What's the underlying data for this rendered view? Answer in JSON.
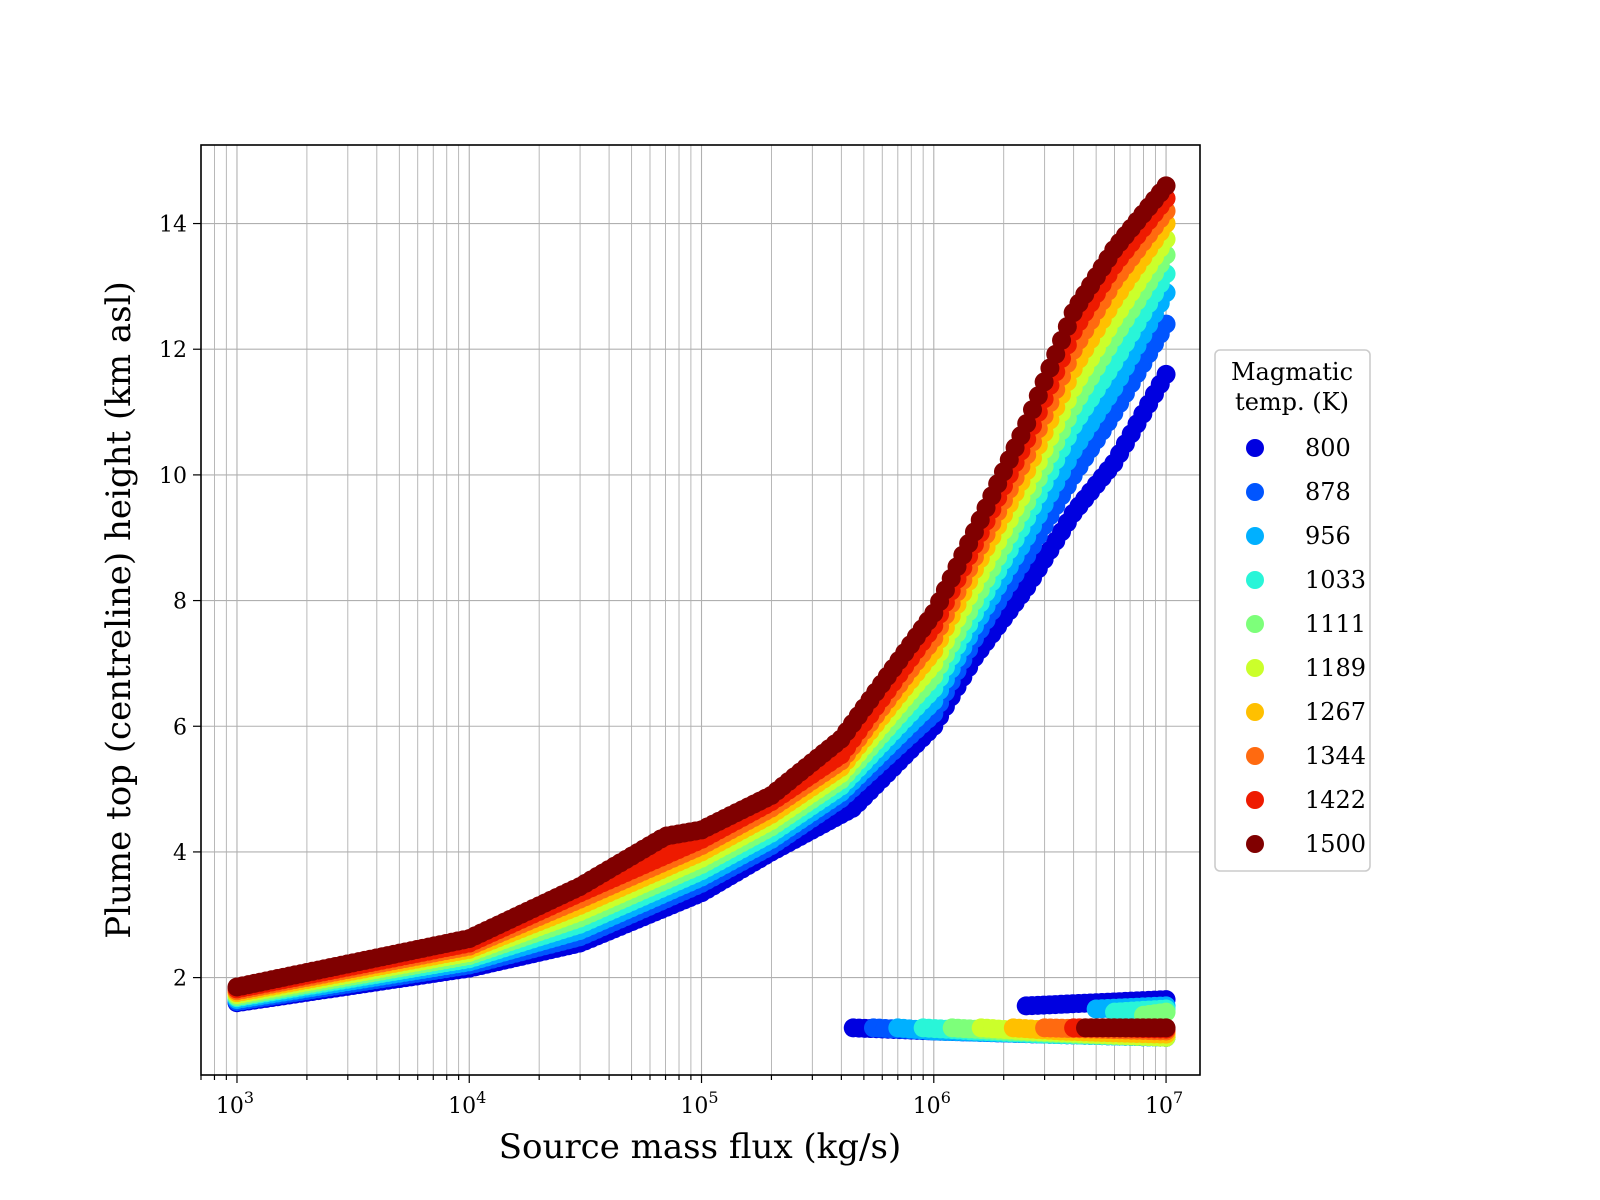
{
  "chart_data": {
    "type": "scatter",
    "title": "",
    "xlabel": "Source mass flux (kg/s)",
    "ylabel": "Plume top (centreline) height (km asl)",
    "x_scale": "log",
    "xlim": [
      700,
      14000000
    ],
    "ylim": [
      0.45,
      15.25
    ],
    "grid": true,
    "grid_minor_x": true,
    "x_tick_labels": [
      {
        "base": "10",
        "exp": "3",
        "value": 1000
      },
      {
        "base": "10",
        "exp": "4",
        "value": 10000
      },
      {
        "base": "10",
        "exp": "5",
        "value": 100000
      },
      {
        "base": "10",
        "exp": "6",
        "value": 1000000
      },
      {
        "base": "10",
        "exp": "7",
        "value": 10000000
      }
    ],
    "y_ticks": [
      2,
      4,
      6,
      8,
      10,
      12,
      14
    ],
    "y_tick_labels": [
      "2",
      "4",
      "6",
      "8",
      "10",
      "12",
      "14"
    ],
    "legend": {
      "title_lines": [
        "Magmatic",
        "temp. (K)"
      ],
      "placement": "outside right",
      "entries": [
        {
          "label": "800",
          "color": "#0000e0"
        },
        {
          "label": "878",
          "color": "#0055ff"
        },
        {
          "label": "956",
          "color": "#00b0ff"
        },
        {
          "label": "1033",
          "color": "#29f5d8"
        },
        {
          "label": "1111",
          "color": "#7dff7a"
        },
        {
          "label": "1189",
          "color": "#cbff2b"
        },
        {
          "label": "1267",
          "color": "#ffc000"
        },
        {
          "label": "1344",
          "color": "#ff6a10"
        },
        {
          "label": "1422",
          "color": "#ee1a00"
        },
        {
          "label": "1500",
          "color": "#800000"
        }
      ]
    },
    "series": [
      {
        "name": "800",
        "color": "#0000e0",
        "upper_x": [
          1000,
          10000,
          30000,
          100000,
          200000,
          450000,
          1000000,
          1500000,
          2500000,
          4000000,
          6000000,
          10000000
        ],
        "upper_y": [
          1.6,
          2.15,
          2.55,
          3.35,
          4.0,
          4.7,
          6.0,
          7.1,
          8.2,
          9.4,
          10.2,
          11.6
        ],
        "lower_x": [
          450000,
          1000000,
          3000000,
          10000000
        ],
        "lower_y": [
          1.2,
          1.15,
          1.1,
          1.05
        ],
        "extra_x": [
          2500000,
          5000000,
          10000000
        ],
        "extra_y": [
          1.55,
          1.6,
          1.65
        ]
      },
      {
        "name": "878",
        "color": "#0055ff",
        "upper_x": [
          1000,
          10000,
          30000,
          100000,
          200000,
          400000,
          1000000,
          1500000,
          2500000,
          4000000,
          6000000,
          10000000
        ],
        "upper_y": [
          1.62,
          2.2,
          2.65,
          3.5,
          4.1,
          4.85,
          6.2,
          7.4,
          8.7,
          10.0,
          11.0,
          12.4
        ],
        "lower_x": [
          550000,
          1000000,
          3000000,
          10000000
        ],
        "lower_y": [
          1.2,
          1.15,
          1.1,
          1.05
        ]
      },
      {
        "name": "956",
        "color": "#00b0ff",
        "upper_x": [
          1000,
          10000,
          30000,
          100000,
          200000,
          400000,
          1000000,
          1500000,
          2500000,
          4000000,
          6000000,
          10000000
        ],
        "upper_y": [
          1.65,
          2.25,
          2.75,
          3.6,
          4.2,
          4.95,
          6.4,
          7.6,
          9.0,
          10.4,
          11.4,
          12.9
        ],
        "lower_x": [
          700000,
          1000000,
          3000000,
          10000000
        ],
        "lower_y": [
          1.2,
          1.15,
          1.1,
          1.05
        ],
        "extra_x": [
          5000000,
          10000000
        ],
        "extra_y": [
          1.5,
          1.55
        ]
      },
      {
        "name": "1033",
        "color": "#29f5d8",
        "upper_x": [
          1000,
          10000,
          30000,
          100000,
          200000,
          400000,
          1000000,
          1500000,
          2500000,
          4000000,
          6000000,
          10000000
        ],
        "upper_y": [
          1.68,
          2.3,
          2.85,
          3.7,
          4.3,
          5.05,
          6.6,
          7.8,
          9.3,
          10.8,
          11.8,
          13.2
        ],
        "lower_x": [
          900000,
          1500000,
          3000000,
          10000000
        ],
        "lower_y": [
          1.2,
          1.15,
          1.1,
          1.05
        ],
        "extra_x": [
          6000000,
          10000000
        ],
        "extra_y": [
          1.45,
          1.5
        ]
      },
      {
        "name": "1111",
        "color": "#7dff7a",
        "upper_x": [
          1000,
          10000,
          30000,
          100000,
          200000,
          400000,
          1000000,
          1500000,
          2500000,
          4000000,
          6000000,
          10000000
        ],
        "upper_y": [
          1.7,
          2.35,
          2.95,
          3.8,
          4.4,
          5.15,
          6.8,
          8.0,
          9.55,
          11.1,
          12.2,
          13.5
        ],
        "lower_x": [
          1200000,
          2000000,
          4000000,
          10000000
        ],
        "lower_y": [
          1.2,
          1.15,
          1.1,
          1.05
        ],
        "extra_x": [
          8000000,
          10000000
        ],
        "extra_y": [
          1.4,
          1.45
        ]
      },
      {
        "name": "1189",
        "color": "#cbff2b",
        "upper_x": [
          1000,
          10000,
          30000,
          100000,
          200000,
          400000,
          1000000,
          1500000,
          2500000,
          4000000,
          6000000,
          10000000
        ],
        "upper_y": [
          1.73,
          2.4,
          3.05,
          3.9,
          4.5,
          5.25,
          7.0,
          8.25,
          9.8,
          11.4,
          12.5,
          13.75
        ],
        "lower_x": [
          1600000,
          2500000,
          5000000,
          10000000
        ],
        "lower_y": [
          1.2,
          1.15,
          1.1,
          1.05
        ],
        "extra_x": [
          10000000
        ],
        "extra_y": [
          1.4
        ]
      },
      {
        "name": "1267",
        "color": "#ffc000",
        "upper_x": [
          1000,
          10000,
          30000,
          100000,
          200000,
          400000,
          1000000,
          1500000,
          2500000,
          4000000,
          6000000,
          10000000
        ],
        "upper_y": [
          1.76,
          2.45,
          3.15,
          4.0,
          4.6,
          5.35,
          7.2,
          8.5,
          10.05,
          11.7,
          12.8,
          14.0
        ],
        "lower_x": [
          2200000,
          3500000,
          6000000,
          10000000
        ],
        "lower_y": [
          1.2,
          1.15,
          1.12,
          1.1
        ]
      },
      {
        "name": "1344",
        "color": "#ff6a10",
        "upper_x": [
          1000,
          10000,
          30000,
          100000,
          200000,
          400000,
          1000000,
          1500000,
          2500000,
          4000000,
          6000000,
          10000000
        ],
        "upper_y": [
          1.79,
          2.5,
          3.25,
          4.1,
          4.7,
          5.45,
          7.4,
          8.7,
          10.3,
          12.0,
          13.1,
          14.2
        ],
        "lower_x": [
          3000000,
          5000000,
          10000000
        ],
        "lower_y": [
          1.2,
          1.18,
          1.15
        ]
      },
      {
        "name": "1422",
        "color": "#ee1a00",
        "upper_x": [
          1000,
          10000,
          30000,
          100000,
          200000,
          400000,
          1000000,
          1500000,
          2500000,
          4000000,
          6000000,
          10000000
        ],
        "upper_y": [
          1.82,
          2.55,
          3.35,
          4.2,
          4.8,
          5.55,
          7.6,
          8.9,
          10.55,
          12.3,
          13.35,
          14.4
        ],
        "lower_x": [
          4000000,
          6000000,
          10000000
        ],
        "lower_y": [
          1.2,
          1.2,
          1.18
        ]
      },
      {
        "name": "1500",
        "color": "#800000",
        "upper_x": [
          1000,
          10000,
          30000,
          70000,
          100000,
          200000,
          400000,
          1000000,
          1500000,
          2500000,
          4000000,
          6000000,
          10000000
        ],
        "upper_y": [
          1.85,
          2.62,
          3.45,
          4.25,
          4.35,
          4.9,
          5.8,
          7.8,
          9.1,
          10.8,
          12.6,
          13.6,
          14.6
        ],
        "lower_x": [
          4500000,
          6000000,
          10000000
        ],
        "lower_y": [
          1.2,
          1.2,
          1.2
        ]
      }
    ]
  }
}
